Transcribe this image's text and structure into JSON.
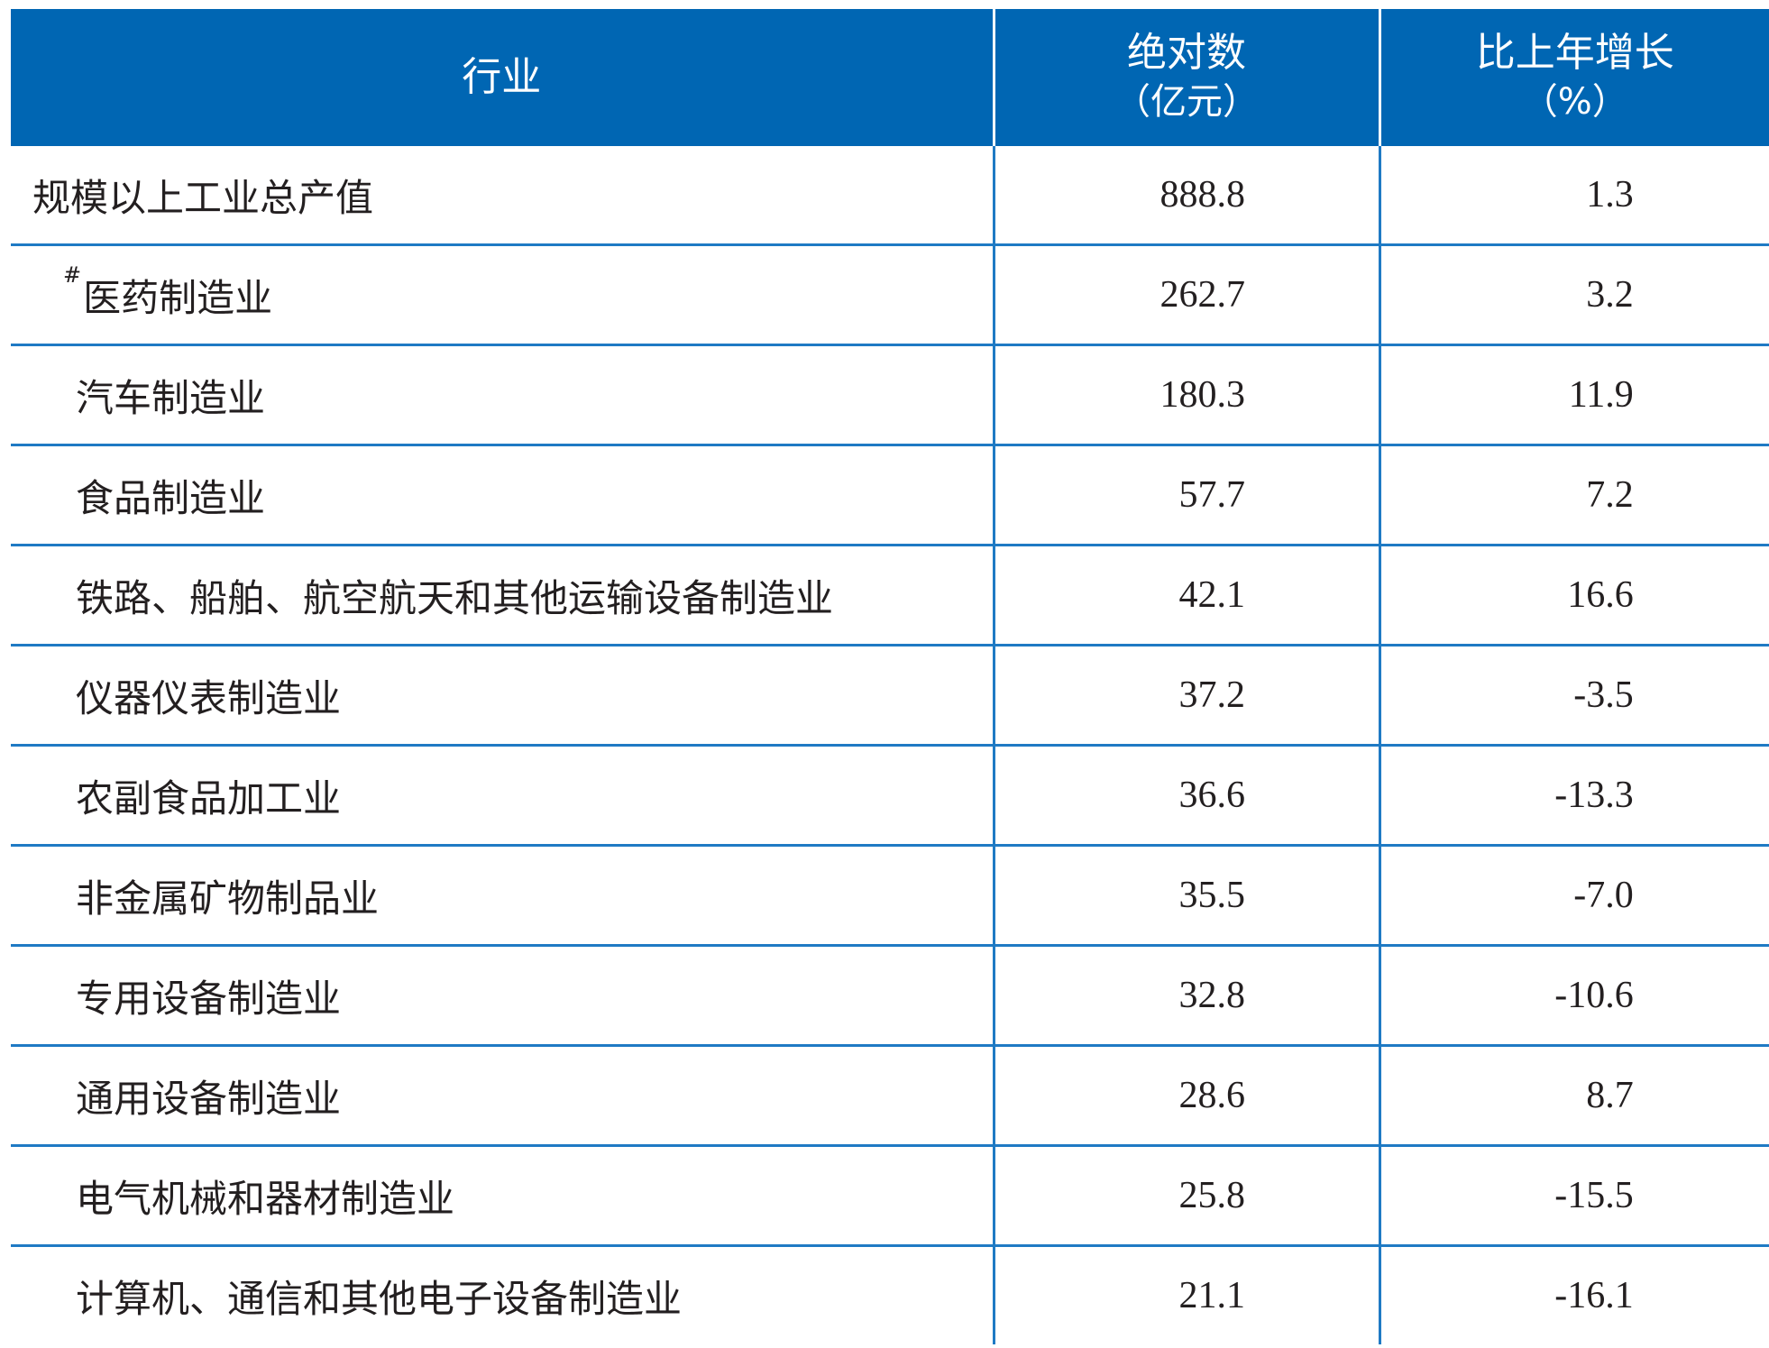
{
  "table": {
    "headers": {
      "industry": "行业",
      "absolute_line1": "绝对数",
      "absolute_line2": "（亿元）",
      "growth_line1": "比上年增长",
      "growth_line2": "（%）"
    },
    "rows": [
      {
        "mark": "",
        "name": "规模以上工业总产值",
        "value": "888.8",
        "growth": "1.3"
      },
      {
        "mark": "#",
        "name": "医药制造业",
        "value": "262.7",
        "growth": "3.2"
      },
      {
        "mark": "",
        "name": "汽车制造业",
        "value": "180.3",
        "growth": "11.9"
      },
      {
        "mark": "",
        "name": "食品制造业",
        "value": "57.7",
        "growth": "7.2"
      },
      {
        "mark": "",
        "name": "铁路、船舶、航空航天和其他运输设备制造业",
        "value": "42.1",
        "growth": "16.6"
      },
      {
        "mark": "",
        "name": "仪器仪表制造业",
        "value": "37.2",
        "growth": "-3.5"
      },
      {
        "mark": "",
        "name": "农副食品加工业",
        "value": "36.6",
        "growth": "-13.3"
      },
      {
        "mark": "",
        "name": "非金属矿物制品业",
        "value": "35.5",
        "growth": "-7.0"
      },
      {
        "mark": "",
        "name": "专用设备制造业",
        "value": "32.8",
        "growth": "-10.6"
      },
      {
        "mark": "",
        "name": "通用设备制造业",
        "value": "28.6",
        "growth": "8.7"
      },
      {
        "mark": "",
        "name": "电气机械和器材制造业",
        "value": "25.8",
        "growth": "-15.5"
      },
      {
        "mark": "",
        "name": "计算机、通信和其他电子设备制造业",
        "value": "21.1",
        "growth": "-16.1"
      }
    ]
  },
  "colors": {
    "header_bg": "#0066b3",
    "header_text": "#ffffff",
    "rule": "#1f7ac4"
  }
}
